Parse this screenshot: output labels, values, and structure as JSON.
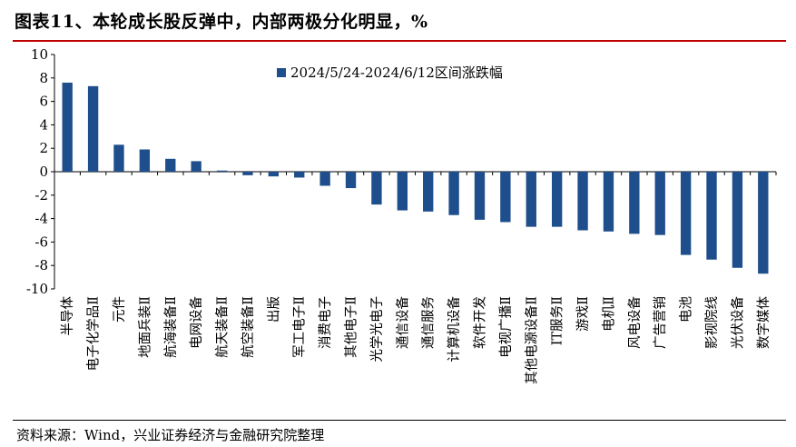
{
  "header": {
    "title": "图表11、本轮成长股反弹中，内部两极分化明显，%"
  },
  "footer": {
    "source": "资料来源：Wind，兴业证券经济与金融研究院整理"
  },
  "colors": {
    "bar": "#1f4e8c",
    "title_rule": "#c00000",
    "axis": "#000000"
  },
  "chart_data": {
    "type": "bar",
    "title": "",
    "xlabel": "",
    "ylabel": "",
    "ylim": [
      -10,
      10
    ],
    "yticks": [
      10,
      8,
      6,
      4,
      2,
      0,
      -2,
      -4,
      -6,
      -8,
      -10
    ],
    "grid": false,
    "legend_position": "top",
    "categories": [
      "半导体",
      "电子化学品Ⅱ",
      "元件",
      "地面兵装Ⅱ",
      "航海装备Ⅱ",
      "电网设备",
      "航天装备Ⅱ",
      "航空装备Ⅱ",
      "出版",
      "军工电子Ⅱ",
      "消费电子",
      "其他电子Ⅱ",
      "光学光电子",
      "通信设备",
      "通信服务",
      "计算机设备",
      "软件开发",
      "电视广播Ⅱ",
      "其他电源设备Ⅱ",
      "IT服务Ⅱ",
      "游戏Ⅱ",
      "电机Ⅱ",
      "风电设备",
      "广告营销",
      "电池",
      "影视院线",
      "光伏设备",
      "数字媒体"
    ],
    "series": [
      {
        "name": "2024/5/24-2024/6/12区间涨跌幅",
        "values": [
          7.6,
          7.3,
          2.3,
          1.9,
          1.1,
          0.9,
          0.1,
          -0.3,
          -0.4,
          -0.5,
          -1.2,
          -1.4,
          -2.8,
          -3.3,
          -3.4,
          -3.7,
          -4.1,
          -4.3,
          -4.7,
          -4.7,
          -5.0,
          -5.1,
          -5.3,
          -5.4,
          -7.1,
          -7.5,
          -8.2,
          -8.7
        ]
      }
    ]
  }
}
